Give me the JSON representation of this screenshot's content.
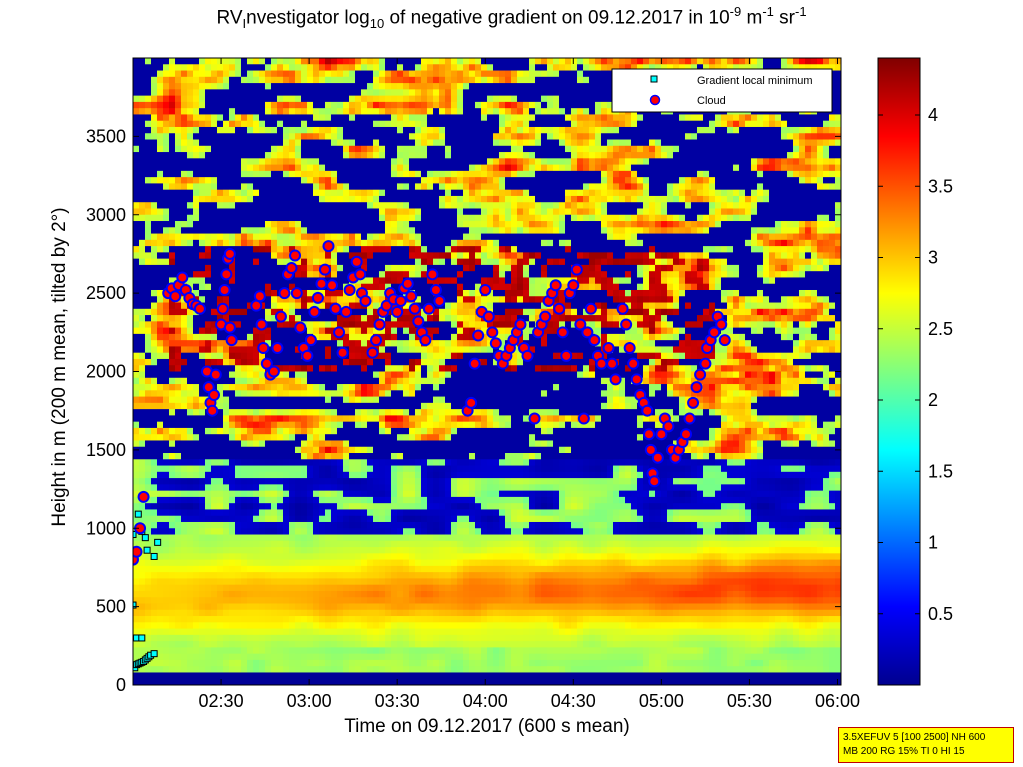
{
  "title": {
    "pre": "RV",
    "sub1": "I",
    "mid": "nvestigator log",
    "sub2": "10",
    "mid2": " of negative gradient on 09.12.2017 in 10",
    "sup1": "-9",
    "mid3": " m",
    "sup2": "-1",
    "mid4": " sr",
    "sup3": "-1"
  },
  "axes": {
    "xlabel": "Time on 09.12.2017 (600 s mean)",
    "ylabel": "Height in m (200 m mean, tilted by 2°)"
  },
  "infobox": {
    "line1": "3.5XEFUV 5 [100 2500] NH 600",
    "line2": "MB 200 RG 15% TI 0 HI 15"
  },
  "colors": {
    "min_marker": "#00ffff",
    "cloud_marker": "#ff0000",
    "cloud_edge": "#0000ff",
    "colormap": "jet"
  },
  "chart_data": {
    "type": "heatmap",
    "colormap": "jet",
    "x_ticks": [
      "02:30",
      "03:00",
      "03:30",
      "04:00",
      "04:30",
      "05:00",
      "05:30",
      "06:00"
    ],
    "x_tick_hours": [
      2.5,
      3.0,
      3.5,
      4.0,
      4.5,
      5.0,
      5.5,
      6.0
    ],
    "xlim_hours": [
      2.0,
      6.02
    ],
    "y_ticks": [
      0,
      500,
      1000,
      1500,
      2000,
      2500,
      3000,
      3500
    ],
    "ylim": [
      0,
      4000
    ],
    "colorbar": {
      "ticks": [
        "0.5",
        "1",
        "1.5",
        "2",
        "2.5",
        "3",
        "3.5",
        "4"
      ],
      "tick_values": [
        0.5,
        1.0,
        1.5,
        2.0,
        2.5,
        3.0,
        3.5,
        4.0
      ],
      "range": [
        0,
        4.4
      ]
    },
    "legend": {
      "position": "top-right",
      "entries": [
        "Gradient local minimum",
        "Cloud"
      ]
    },
    "series": [
      {
        "name": "Gradient local minimum",
        "marker": "square",
        "points": [
          [
            2.01,
            110
          ],
          [
            2.02,
            130
          ],
          [
            2.03,
            135
          ],
          [
            2.04,
            140
          ],
          [
            2.05,
            145
          ],
          [
            2.06,
            150
          ],
          [
            2.07,
            160
          ],
          [
            2.08,
            170
          ],
          [
            2.09,
            180
          ],
          [
            2.1,
            190
          ],
          [
            2.12,
            200
          ],
          [
            2.0,
            510
          ],
          [
            2.02,
            300
          ],
          [
            2.05,
            300
          ],
          [
            2.0,
            960
          ],
          [
            2.03,
            1090
          ],
          [
            2.05,
            980
          ],
          [
            2.07,
            940
          ],
          [
            2.08,
            860
          ],
          [
            2.12,
            820
          ],
          [
            2.14,
            910
          ]
        ]
      },
      {
        "name": "Cloud",
        "marker": "circle",
        "points": [
          [
            2.0,
            800
          ],
          [
            2.02,
            850
          ],
          [
            2.04,
            1000
          ],
          [
            2.06,
            1200
          ],
          [
            2.2,
            2500
          ],
          [
            2.22,
            2530
          ],
          [
            2.24,
            2480
          ],
          [
            2.26,
            2550
          ],
          [
            2.28,
            2600
          ],
          [
            2.3,
            2520
          ],
          [
            2.32,
            2470
          ],
          [
            2.34,
            2430
          ],
          [
            2.36,
            2420
          ],
          [
            2.38,
            2400
          ],
          [
            2.42,
            2000
          ],
          [
            2.43,
            1900
          ],
          [
            2.44,
            1800
          ],
          [
            2.45,
            1750
          ],
          [
            2.46,
            1850
          ],
          [
            2.47,
            1980
          ],
          [
            2.5,
            2300
          ],
          [
            2.51,
            2400
          ],
          [
            2.52,
            2520
          ],
          [
            2.53,
            2620
          ],
          [
            2.54,
            2720
          ],
          [
            2.55,
            2750
          ],
          [
            2.55,
            2280
          ],
          [
            2.56,
            2200
          ],
          [
            2.7,
            2420
          ],
          [
            2.72,
            2480
          ],
          [
            2.73,
            2300
          ],
          [
            2.74,
            2150
          ],
          [
            2.76,
            2050
          ],
          [
            2.78,
            1980
          ],
          [
            2.8,
            2000
          ],
          [
            2.82,
            2150
          ],
          [
            2.84,
            2350
          ],
          [
            2.86,
            2500
          ],
          [
            2.88,
            2620
          ],
          [
            2.9,
            2660
          ],
          [
            2.92,
            2740
          ],
          [
            2.93,
            2500
          ],
          [
            2.95,
            2280
          ],
          [
            2.97,
            2150
          ],
          [
            2.99,
            2100
          ],
          [
            3.01,
            2200
          ],
          [
            3.03,
            2380
          ],
          [
            3.05,
            2470
          ],
          [
            3.07,
            2560
          ],
          [
            3.09,
            2650
          ],
          [
            3.11,
            2800
          ],
          [
            3.13,
            2550
          ],
          [
            3.15,
            2400
          ],
          [
            3.17,
            2250
          ],
          [
            3.19,
            2120
          ],
          [
            3.21,
            2380
          ],
          [
            3.23,
            2520
          ],
          [
            3.25,
            2600
          ],
          [
            3.27,
            2700
          ],
          [
            3.29,
            2620
          ],
          [
            3.3,
            2500
          ],
          [
            3.32,
            2450
          ],
          [
            3.36,
            2120
          ],
          [
            3.38,
            2200
          ],
          [
            3.4,
            2300
          ],
          [
            3.42,
            2380
          ],
          [
            3.44,
            2420
          ],
          [
            3.46,
            2500
          ],
          [
            3.48,
            2460
          ],
          [
            3.5,
            2380
          ],
          [
            3.52,
            2450
          ],
          [
            3.54,
            2530
          ],
          [
            3.56,
            2560
          ],
          [
            3.58,
            2480
          ],
          [
            3.6,
            2400
          ],
          [
            3.62,
            2320
          ],
          [
            3.64,
            2250
          ],
          [
            3.66,
            2200
          ],
          [
            3.68,
            2400
          ],
          [
            3.7,
            2620
          ],
          [
            3.72,
            2520
          ],
          [
            3.74,
            2450
          ],
          [
            3.9,
            1750
          ],
          [
            3.92,
            1800
          ],
          [
            3.94,
            2050
          ],
          [
            3.96,
            2230
          ],
          [
            3.98,
            2380
          ],
          [
            4.0,
            2520
          ],
          [
            4.02,
            2350
          ],
          [
            4.04,
            2250
          ],
          [
            4.06,
            2180
          ],
          [
            4.08,
            2100
          ],
          [
            4.1,
            2050
          ],
          [
            4.12,
            2100
          ],
          [
            4.14,
            2150
          ],
          [
            4.16,
            2200
          ],
          [
            4.18,
            2250
          ],
          [
            4.2,
            2300
          ],
          [
            4.22,
            2150
          ],
          [
            4.24,
            2100
          ],
          [
            4.28,
            1700
          ],
          [
            4.3,
            2250
          ],
          [
            4.32,
            2300
          ],
          [
            4.34,
            2350
          ],
          [
            4.36,
            2450
          ],
          [
            4.38,
            2500
          ],
          [
            4.4,
            2550
          ],
          [
            4.42,
            2400
          ],
          [
            4.44,
            2250
          ],
          [
            4.46,
            2100
          ],
          [
            4.48,
            2500
          ],
          [
            4.5,
            2550
          ],
          [
            4.52,
            2650
          ],
          [
            4.54,
            2300
          ],
          [
            4.56,
            1700
          ],
          [
            4.58,
            2250
          ],
          [
            4.6,
            2400
          ],
          [
            4.62,
            2200
          ],
          [
            4.64,
            2100
          ],
          [
            4.66,
            2050
          ],
          [
            4.7,
            2150
          ],
          [
            4.72,
            2050
          ],
          [
            4.74,
            1950
          ],
          [
            4.78,
            2400
          ],
          [
            4.8,
            2300
          ],
          [
            4.82,
            2150
          ],
          [
            4.84,
            2050
          ],
          [
            4.86,
            1950
          ],
          [
            4.88,
            1850
          ],
          [
            4.9,
            1800
          ],
          [
            4.92,
            1750
          ],
          [
            4.93,
            1600
          ],
          [
            4.94,
            1500
          ],
          [
            4.95,
            1350
          ],
          [
            4.96,
            1300
          ],
          [
            4.98,
            1450
          ],
          [
            5.0,
            1600
          ],
          [
            5.02,
            1700
          ],
          [
            5.04,
            1650
          ],
          [
            5.06,
            1500
          ],
          [
            5.08,
            1450
          ],
          [
            5.1,
            1500
          ],
          [
            5.12,
            1550
          ],
          [
            5.14,
            1600
          ],
          [
            5.16,
            1700
          ],
          [
            5.18,
            1800
          ],
          [
            5.2,
            1900
          ],
          [
            5.22,
            1980
          ],
          [
            5.25,
            2050
          ],
          [
            5.26,
            2150
          ],
          [
            5.28,
            2200
          ],
          [
            5.3,
            2250
          ],
          [
            5.32,
            2350
          ],
          [
            5.34,
            2300
          ],
          [
            5.36,
            2200
          ]
        ]
      }
    ]
  }
}
